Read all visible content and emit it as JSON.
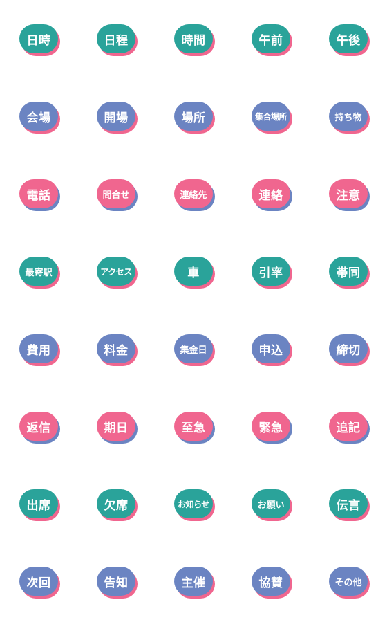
{
  "colors": {
    "teal": "#2aa39a",
    "blue": "#6b84c2",
    "pink": "#f0668f",
    "shadow_teal": "#f0668f",
    "shadow_blue": "#f0668f",
    "shadow_pink": "#6b84c2"
  },
  "rows": [
    [
      {
        "label": "日時",
        "color": "teal"
      },
      {
        "label": "日程",
        "color": "teal"
      },
      {
        "label": "時間",
        "color": "teal"
      },
      {
        "label": "午前",
        "color": "teal"
      },
      {
        "label": "午後",
        "color": "teal"
      }
    ],
    [
      {
        "label": "会場",
        "color": "blue"
      },
      {
        "label": "開場",
        "color": "blue"
      },
      {
        "label": "場所",
        "color": "blue"
      },
      {
        "label": "集合場所",
        "color": "blue"
      },
      {
        "label": "持ち物",
        "color": "blue"
      }
    ],
    [
      {
        "label": "電話",
        "color": "pink"
      },
      {
        "label": "問合せ",
        "color": "pink"
      },
      {
        "label": "連絡先",
        "color": "pink"
      },
      {
        "label": "連絡",
        "color": "pink"
      },
      {
        "label": "注意",
        "color": "pink"
      }
    ],
    [
      {
        "label": "最寄駅",
        "color": "teal"
      },
      {
        "label": "アクセス",
        "color": "teal"
      },
      {
        "label": "車",
        "color": "teal"
      },
      {
        "label": "引率",
        "color": "teal"
      },
      {
        "label": "帯同",
        "color": "teal"
      }
    ],
    [
      {
        "label": "費用",
        "color": "blue"
      },
      {
        "label": "料金",
        "color": "blue"
      },
      {
        "label": "集金日",
        "color": "blue"
      },
      {
        "label": "申込",
        "color": "blue"
      },
      {
        "label": "締切",
        "color": "blue"
      }
    ],
    [
      {
        "label": "返信",
        "color": "pink"
      },
      {
        "label": "期日",
        "color": "pink"
      },
      {
        "label": "至急",
        "color": "pink"
      },
      {
        "label": "緊急",
        "color": "pink"
      },
      {
        "label": "追記",
        "color": "pink"
      }
    ],
    [
      {
        "label": "出席",
        "color": "teal"
      },
      {
        "label": "欠席",
        "color": "teal"
      },
      {
        "label": "お知らせ",
        "color": "teal"
      },
      {
        "label": "お願い",
        "color": "teal"
      },
      {
        "label": "伝言",
        "color": "teal"
      }
    ],
    [
      {
        "label": "次回",
        "color": "blue"
      },
      {
        "label": "告知",
        "color": "blue"
      },
      {
        "label": "主催",
        "color": "blue"
      },
      {
        "label": "協賛",
        "color": "blue"
      },
      {
        "label": "その他",
        "color": "blue"
      }
    ]
  ]
}
